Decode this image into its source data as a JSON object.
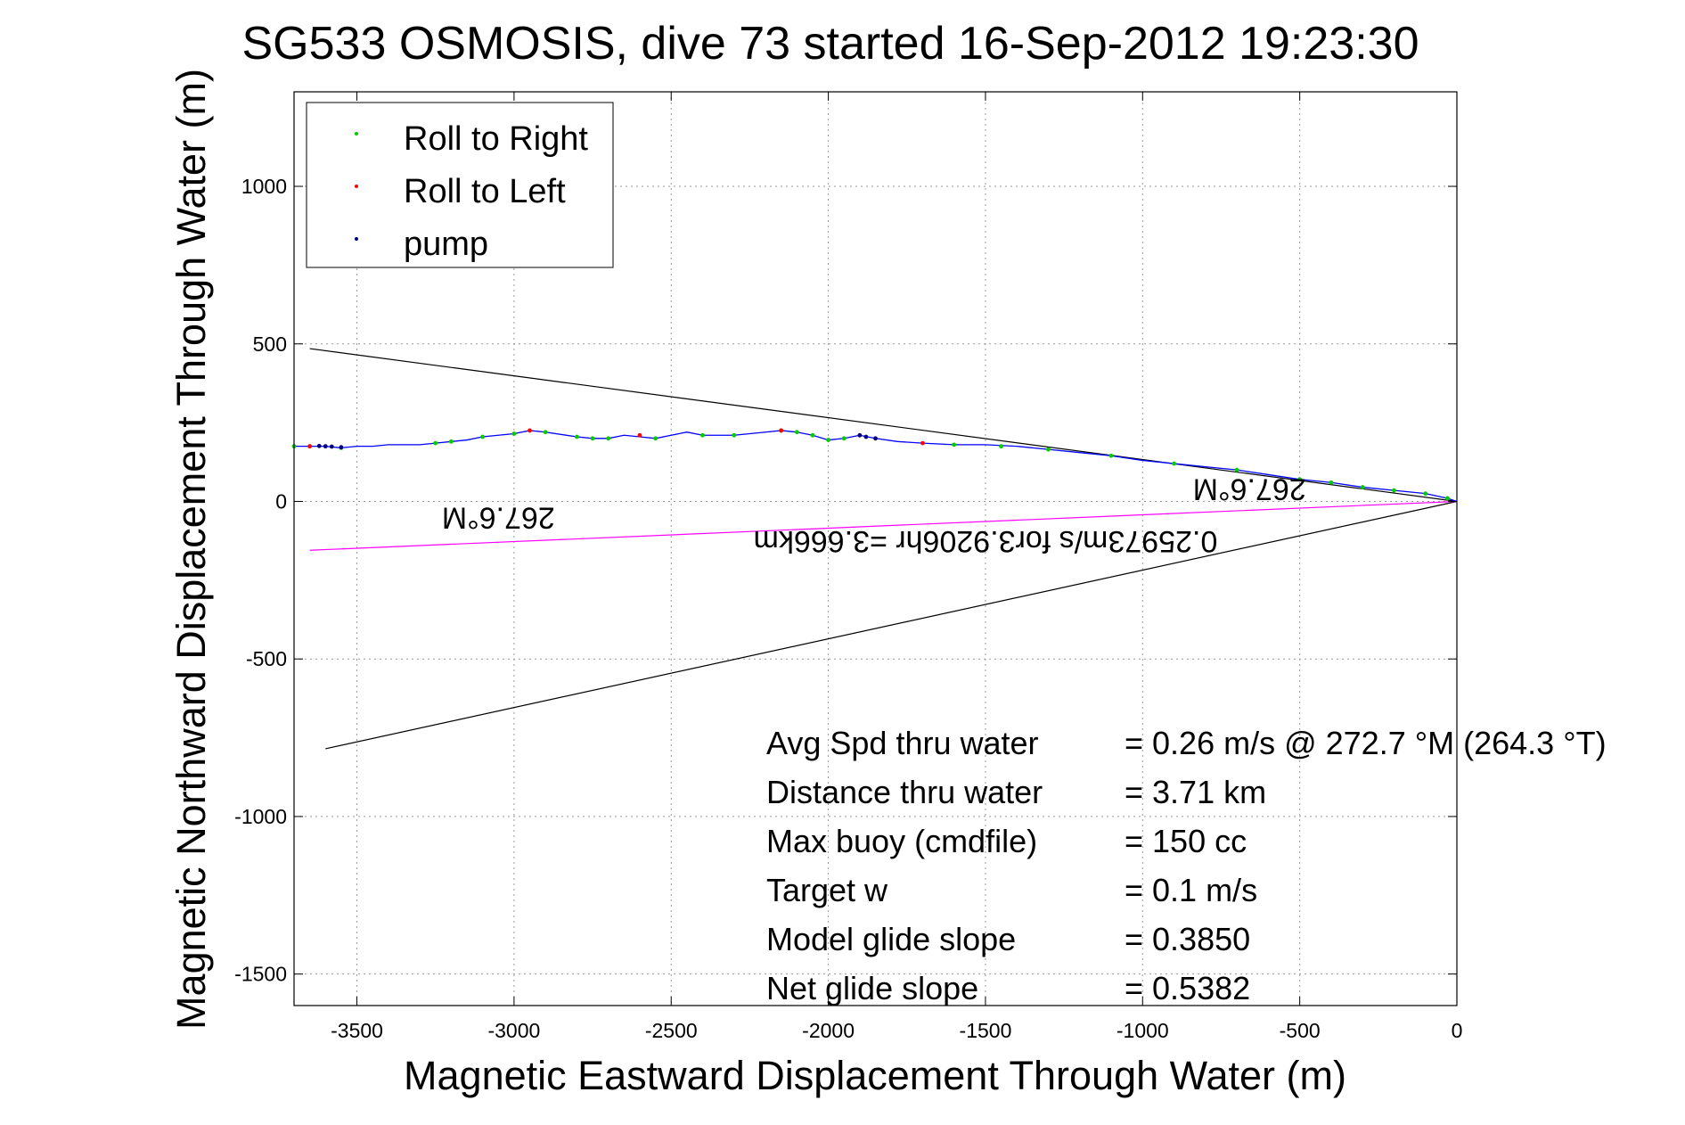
{
  "chart_data": {
    "type": "line",
    "title": "SG533 OSMOSIS, dive 73 started 16-Sep-2012 19:23:30",
    "xlabel": "Magnetic Eastward Displacement Through Water (m)",
    "ylabel": "Magnetic Northward Displacement Through Water (m)",
    "xlim": [
      -3700,
      0
    ],
    "ylim": [
      -1600,
      1300
    ],
    "xticks": [
      -3500,
      -3000,
      -2500,
      -2000,
      -1500,
      -1000,
      -500,
      0
    ],
    "yticks": [
      -1500,
      -1000,
      -500,
      0,
      500,
      1000
    ],
    "xtick_labels": [
      "-3500",
      "-3000",
      "-2500",
      "-2000",
      "-1500",
      "-1000",
      "-500",
      "0"
    ],
    "ytick_labels": [
      "-1500",
      "-1000",
      "-500",
      "0",
      "500",
      "1000"
    ],
    "grid": true,
    "legend": {
      "position": "top-left",
      "entries": [
        {
          "label": "Roll to Right",
          "color": "#00cc00"
        },
        {
          "label": "Roll to Left",
          "color": "#ff0000"
        },
        {
          "label": "pump",
          "color": "#000080"
        }
      ]
    },
    "track": {
      "color": "#0000ff",
      "x": [
        0,
        -30,
        -100,
        -200,
        -300,
        -400,
        -500,
        -600,
        -700,
        -800,
        -900,
        -1000,
        -1100,
        -1200,
        -1300,
        -1400,
        -1500,
        -1600,
        -1700,
        -1780,
        -1850,
        -1900,
        -1950,
        -2000,
        -2050,
        -2100,
        -2150,
        -2200,
        -2300,
        -2400,
        -2450,
        -2500,
        -2550,
        -2600,
        -2650,
        -2700,
        -2750,
        -2800,
        -2900,
        -2950,
        -3000,
        -3050,
        -3100,
        -3150,
        -3200,
        -3250,
        -3300,
        -3350,
        -3400,
        -3450,
        -3500,
        -3550,
        -3600,
        -3650,
        -3700
      ],
      "y": [
        0,
        10,
        25,
        35,
        45,
        60,
        70,
        85,
        100,
        110,
        120,
        130,
        145,
        155,
        165,
        175,
        180,
        180,
        185,
        190,
        200,
        210,
        200,
        195,
        210,
        220,
        225,
        220,
        210,
        210,
        220,
        210,
        200,
        205,
        210,
        200,
        200,
        205,
        220,
        225,
        215,
        210,
        205,
        195,
        190,
        185,
        180,
        180,
        180,
        175,
        175,
        170,
        175,
        175,
        175
      ],
      "roll_right": [
        [
          -30,
          10
        ],
        [
          -100,
          25
        ],
        [
          -200,
          35
        ],
        [
          -300,
          45
        ],
        [
          -400,
          60
        ],
        [
          -500,
          70
        ],
        [
          -700,
          100
        ],
        [
          -900,
          120
        ],
        [
          -1100,
          145
        ],
        [
          -1300,
          165
        ],
        [
          -1450,
          175
        ],
        [
          -1600,
          180
        ],
        [
          -1950,
          200
        ],
        [
          -2000,
          195
        ],
        [
          -2050,
          210
        ],
        [
          -2100,
          220
        ],
        [
          -2150,
          225
        ],
        [
          -2300,
          210
        ],
        [
          -2400,
          210
        ],
        [
          -2550,
          200
        ],
        [
          -2700,
          200
        ],
        [
          -2750,
          200
        ],
        [
          -2800,
          205
        ],
        [
          -2900,
          220
        ],
        [
          -3000,
          215
        ],
        [
          -3100,
          205
        ],
        [
          -3200,
          190
        ],
        [
          -3250,
          185
        ],
        [
          -3550,
          170
        ],
        [
          -3650,
          175
        ],
        [
          -3700,
          175
        ]
      ],
      "roll_left": [
        [
          -1700,
          185
        ],
        [
          -2150,
          225
        ],
        [
          -2600,
          210
        ],
        [
          -2950,
          225
        ],
        [
          -3650,
          175
        ]
      ],
      "pump": [
        [
          -1850,
          200
        ],
        [
          -1880,
          205
        ],
        [
          -1900,
          210
        ],
        [
          -3550,
          172
        ],
        [
          -3580,
          174
        ],
        [
          -3600,
          175
        ],
        [
          -3620,
          176
        ]
      ]
    },
    "lines": [
      {
        "color": "#000000",
        "x": [
          0,
          -3650
        ],
        "y": [
          0,
          485
        ]
      },
      {
        "color": "#000000",
        "x": [
          0,
          -3600
        ],
        "y": [
          0,
          -785
        ]
      },
      {
        "color": "#ff00ff",
        "x": [
          0,
          -3650
        ],
        "y": [
          0,
          -155
        ]
      }
    ],
    "annotations": [
      {
        "text": "267.6°M",
        "x": -3050,
        "y": -20,
        "rotate": 180
      },
      {
        "text": "267.6°M",
        "x": -660,
        "y": 70,
        "rotate": 180
      },
      {
        "text": "0.25973m/s for3.9206hr =3.666km",
        "x": -1500,
        "y": -95,
        "rotate": 180
      }
    ],
    "stats": [
      {
        "label": "Avg Spd thru water",
        "value": "=  0.26 m/s @ 272.7 °M (264.3 °T)"
      },
      {
        "label": "Distance thru water",
        "value": "=  3.71 km"
      },
      {
        "label": "Max buoy (cmdfile)",
        "value": "= 150 cc"
      },
      {
        "label": "Target w",
        "value": "= 0.1 m/s"
      },
      {
        "label": "Model glide slope",
        "value": "= 0.3850"
      },
      {
        "label": "Net glide slope",
        "value": "= 0.5382"
      }
    ]
  }
}
